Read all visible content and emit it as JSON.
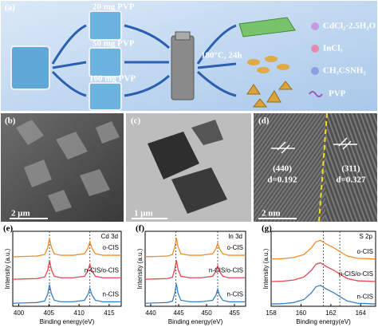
{
  "panel_a": {
    "label": "(a)",
    "amounts": [
      "20 mg PVP",
      "50 mg PVP",
      "100 mg PVP"
    ],
    "condition": "180°C, 24h",
    "legend": [
      "CdCl₂·2.5H₂O",
      "InCl₃",
      "CH₃CSNH₂",
      "PVP"
    ]
  },
  "micrographs": [
    {
      "label": "(b)",
      "scale": "2 μm"
    },
    {
      "label": "(c)",
      "scale": "1 μm"
    },
    {
      "label": "(d)",
      "scale": "2 nm",
      "planes": [
        {
          "plane": "(440)",
          "d": "d=0.192"
        },
        {
          "plane": "(311)",
          "d": "d=0.327"
        }
      ]
    }
  ],
  "chart_data": [
    {
      "type": "line",
      "panel_label": "(e)",
      "title": "Cd 3d",
      "xlabel": "Binding energy(eV)",
      "ylabel": "Intensity (a.u.)",
      "x": [
        399,
        401,
        403,
        404.3,
        404.8,
        405.1,
        405.4,
        405.9,
        407,
        409,
        410.9,
        411.5,
        411.8,
        412.1,
        412.7,
        414,
        416,
        417
      ],
      "series": [
        {
          "name": "o-CIS",
          "color": "#f28c28",
          "values": [
            6.6,
            6.65,
            6.7,
            6.9,
            7.8,
            9.0,
            7.9,
            7.0,
            6.8,
            6.8,
            7.0,
            7.8,
            8.6,
            7.8,
            7.0,
            6.8,
            6.8,
            6.8
          ]
        },
        {
          "name": "n-CIS/o-CIS",
          "color": "#e8454f",
          "values": [
            3.6,
            3.65,
            3.7,
            3.9,
            4.8,
            6.1,
            4.9,
            4.0,
            3.8,
            3.8,
            4.0,
            4.8,
            5.6,
            4.8,
            4.0,
            3.8,
            3.8,
            3.8
          ]
        },
        {
          "name": "n-CIS",
          "color": "#3b7fc0",
          "values": [
            0.4,
            0.45,
            0.5,
            0.7,
            1.6,
            2.9,
            1.7,
            0.8,
            0.6,
            0.6,
            0.8,
            1.6,
            2.4,
            1.6,
            0.8,
            0.6,
            0.6,
            0.6
          ]
        }
      ],
      "xlim": [
        399,
        417
      ],
      "xticks": [
        400,
        405,
        410,
        415
      ],
      "ylim": [
        0,
        10
      ],
      "ref_lines": [
        405.1,
        411.8
      ]
    },
    {
      "type": "line",
      "panel_label": "(f)",
      "title": "In 3d",
      "xlabel": "Binding energy(eV)",
      "ylabel": "Intensity (a.u.)",
      "x": [
        439,
        441,
        443,
        443.9,
        444.3,
        444.6,
        444.9,
        445.4,
        447,
        449,
        451.1,
        451.7,
        452.0,
        452.3,
        452.9,
        454,
        456,
        457
      ],
      "series": [
        {
          "name": "o-CIS",
          "color": "#f28c28",
          "values": [
            6.6,
            6.65,
            6.7,
            6.9,
            7.9,
            9.1,
            7.9,
            7.0,
            6.8,
            6.8,
            7.0,
            7.7,
            8.4,
            7.7,
            7.0,
            6.8,
            6.8,
            6.8
          ]
        },
        {
          "name": "n-CIS/o-CIS",
          "color": "#e8454f",
          "values": [
            3.6,
            3.65,
            3.7,
            3.9,
            4.9,
            6.1,
            4.9,
            4.0,
            3.8,
            3.8,
            4.0,
            4.7,
            5.4,
            4.7,
            4.0,
            3.8,
            3.8,
            3.8
          ]
        },
        {
          "name": "n-CIS",
          "color": "#3b7fc0",
          "values": [
            0.4,
            0.45,
            0.5,
            0.7,
            1.7,
            3.0,
            1.7,
            0.8,
            0.6,
            0.6,
            0.8,
            1.5,
            2.3,
            1.5,
            0.8,
            0.6,
            0.6,
            0.6
          ]
        }
      ],
      "xlim": [
        439,
        457
      ],
      "xticks": [
        440,
        445,
        450,
        455
      ],
      "ylim": [
        0,
        10
      ],
      "ref_lines": [
        444.5,
        452.0
      ]
    },
    {
      "type": "line",
      "panel_label": "(g)",
      "title": "S 2p",
      "xlabel": "Binding energy(eV)",
      "ylabel": "Intensity (a.u.)",
      "x": [
        158,
        158.8,
        159.5,
        160.2,
        160.7,
        161.0,
        161.3,
        161.7,
        162.2,
        162.6,
        163.1,
        163.8,
        164.5,
        165
      ],
      "series": [
        {
          "name": "o-CIS",
          "color": "#f28c28",
          "values": [
            6.3,
            6.35,
            6.5,
            6.9,
            7.8,
            8.6,
            8.8,
            8.3,
            7.8,
            7.3,
            6.7,
            6.4,
            6.35,
            6.3
          ]
        },
        {
          "name": "n-CIS/o-CIS",
          "color": "#e8454f",
          "values": [
            3.3,
            3.35,
            3.5,
            3.9,
            4.8,
            5.6,
            5.8,
            5.3,
            4.8,
            4.3,
            3.7,
            3.4,
            3.35,
            3.3
          ]
        },
        {
          "name": "n-CIS",
          "color": "#3b7fc0",
          "values": [
            0.3,
            0.35,
            0.5,
            0.9,
            1.8,
            2.6,
            2.8,
            2.3,
            1.8,
            1.3,
            0.7,
            0.4,
            0.35,
            0.3
          ]
        }
      ],
      "xlim": [
        158,
        165
      ],
      "xticks": [
        158,
        160,
        162,
        164
      ],
      "ylim": [
        0,
        10
      ],
      "ref_lines": [
        161.5,
        162.6
      ]
    }
  ]
}
